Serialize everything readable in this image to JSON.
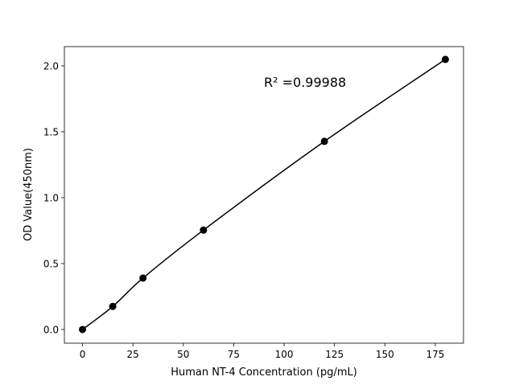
{
  "chart_data": {
    "type": "line",
    "title": "",
    "xlabel": "Human NT-4 Concentration (pg/mL)",
    "ylabel": "OD Value(450nm)",
    "xlim": [
      -9,
      189
    ],
    "ylim": [
      -0.104,
      2.146
    ],
    "xticks": [
      0,
      25,
      50,
      75,
      100,
      125,
      150,
      175
    ],
    "yticks": [
      0.0,
      0.5,
      1.0,
      1.5,
      2.0
    ],
    "xtick_labels": [
      "0",
      "25",
      "50",
      "75",
      "100",
      "125",
      "150",
      "175"
    ],
    "ytick_labels": [
      "0.0",
      "0.5",
      "1.0",
      "1.5",
      "2.0"
    ],
    "grid": false,
    "series": [
      {
        "x": [
          0,
          15,
          30,
          60,
          120,
          180
        ],
        "y": [
          0.0,
          0.175,
          0.39,
          0.754,
          1.427,
          2.049
        ],
        "color": "#000000",
        "marker": "circle"
      }
    ],
    "annotation": "R² =0.99988"
  }
}
